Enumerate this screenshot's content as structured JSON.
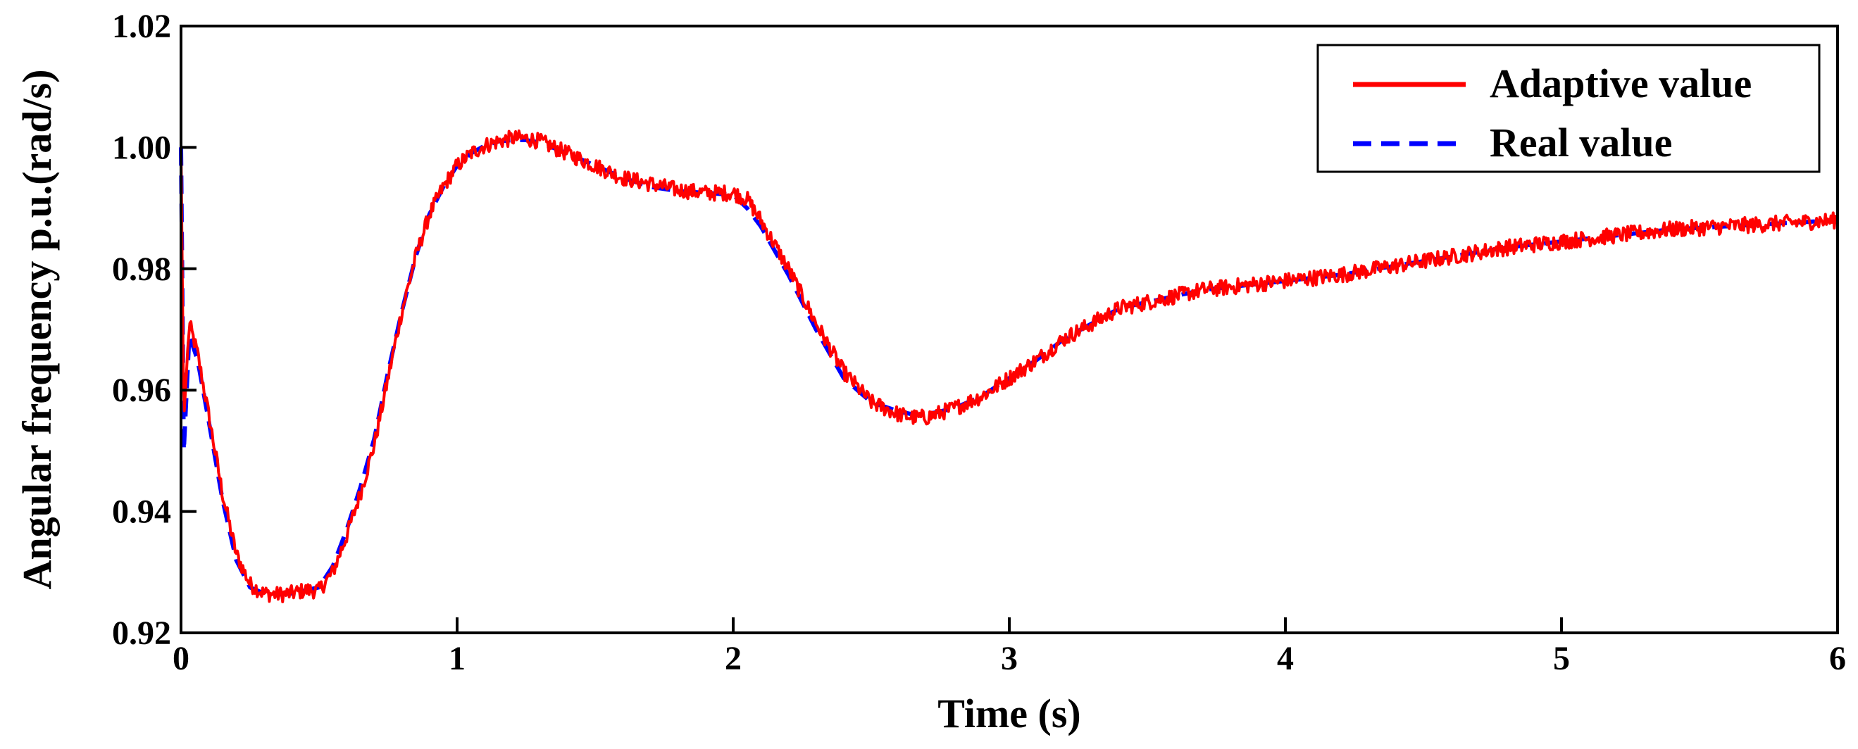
{
  "chart_data": {
    "type": "line",
    "title": "",
    "xlabel": "Time (s)",
    "ylabel": "Angular frequency p.u.(rad/s)",
    "xlim": [
      0,
      6
    ],
    "ylim": [
      0.92,
      1.02
    ],
    "xticks": [
      0,
      1,
      2,
      3,
      4,
      5,
      6
    ],
    "xtick_labels": [
      "0",
      "1",
      "2",
      "3",
      "4",
      "5",
      "6"
    ],
    "yticks": [
      0.92,
      0.94,
      0.96,
      0.98,
      1.0,
      1.02
    ],
    "ytick_labels": [
      "0.92",
      "0.94",
      "0.96",
      "0.98",
      "1.00",
      "1.02"
    ],
    "grid": false,
    "legend_position": "top-right",
    "series": [
      {
        "name": "Adaptive value",
        "color": "#ff0000",
        "style": "solid",
        "noisy": true,
        "x": [
          0,
          0.01,
          0.03,
          0.06,
          0.1,
          0.15,
          0.2,
          0.25,
          0.3,
          0.35,
          0.4,
          0.45,
          0.5,
          0.55,
          0.6,
          0.65,
          0.7,
          0.75,
          0.8,
          0.85,
          0.9,
          0.95,
          1.0,
          1.05,
          1.1,
          1.15,
          1.2,
          1.25,
          1.3,
          1.4,
          1.5,
          1.6,
          1.7,
          1.8,
          1.9,
          2.0,
          2.05,
          2.1,
          2.2,
          2.3,
          2.4,
          2.5,
          2.6,
          2.65,
          2.7,
          2.8,
          2.9,
          3.0,
          3.1,
          3.2,
          3.3,
          3.4,
          3.5,
          3.6,
          3.7,
          3.8,
          3.9,
          4.0,
          4.2,
          4.4,
          4.6,
          4.8,
          5.0,
          5.2,
          5.4,
          5.6,
          5.8,
          6.0
        ],
        "y": [
          1.0,
          0.955,
          0.971,
          0.966,
          0.956,
          0.943,
          0.933,
          0.928,
          0.9265,
          0.9263,
          0.9265,
          0.927,
          0.927,
          0.93,
          0.936,
          0.943,
          0.951,
          0.962,
          0.973,
          0.982,
          0.989,
          0.9935,
          0.997,
          0.999,
          1.0003,
          1.001,
          1.0015,
          1.0015,
          1.001,
          0.999,
          0.997,
          0.995,
          0.994,
          0.993,
          0.9925,
          0.9925,
          0.9915,
          0.988,
          0.98,
          0.971,
          0.963,
          0.958,
          0.956,
          0.9555,
          0.9555,
          0.957,
          0.959,
          0.962,
          0.965,
          0.9685,
          0.971,
          0.9735,
          0.9745,
          0.9755,
          0.9765,
          0.977,
          0.9775,
          0.978,
          0.979,
          0.9805,
          0.982,
          0.9835,
          0.9845,
          0.9855,
          0.9865,
          0.987,
          0.9875,
          0.988
        ]
      },
      {
        "name": "Real value",
        "color": "#0000ff",
        "style": "dashed",
        "noisy": false,
        "x": [
          0,
          0.01,
          0.03,
          0.06,
          0.1,
          0.15,
          0.2,
          0.25,
          0.3,
          0.35,
          0.4,
          0.45,
          0.5,
          0.55,
          0.6,
          0.65,
          0.7,
          0.75,
          0.8,
          0.85,
          0.9,
          0.95,
          1.0,
          1.05,
          1.1,
          1.15,
          1.2,
          1.25,
          1.3,
          1.4,
          1.5,
          1.6,
          1.7,
          1.8,
          1.9,
          2.0,
          2.05,
          2.1,
          2.2,
          2.3,
          2.4,
          2.5,
          2.6,
          2.65,
          2.7,
          2.8,
          2.9,
          3.0,
          3.1,
          3.2,
          3.3,
          3.4,
          3.5,
          3.6,
          3.7,
          3.8,
          3.9,
          4.0,
          4.2,
          4.4,
          4.6,
          4.8,
          5.0,
          5.2,
          5.4,
          5.6,
          5.8,
          6.0
        ],
        "y": [
          1.0,
          0.95,
          0.969,
          0.965,
          0.955,
          0.942,
          0.932,
          0.9275,
          0.9265,
          0.9263,
          0.9265,
          0.927,
          0.9275,
          0.931,
          0.937,
          0.944,
          0.952,
          0.963,
          0.973,
          0.982,
          0.989,
          0.9935,
          0.997,
          0.999,
          1.0003,
          1.001,
          1.0012,
          1.0012,
          1.0008,
          0.999,
          0.997,
          0.995,
          0.9935,
          0.9928,
          0.9925,
          0.9922,
          0.99,
          0.987,
          0.979,
          0.97,
          0.962,
          0.958,
          0.9565,
          0.956,
          0.956,
          0.957,
          0.959,
          0.962,
          0.965,
          0.9685,
          0.971,
          0.9735,
          0.9745,
          0.9755,
          0.9765,
          0.977,
          0.9775,
          0.978,
          0.979,
          0.9805,
          0.982,
          0.9835,
          0.9845,
          0.9855,
          0.9865,
          0.987,
          0.9875,
          0.988
        ]
      }
    ]
  }
}
